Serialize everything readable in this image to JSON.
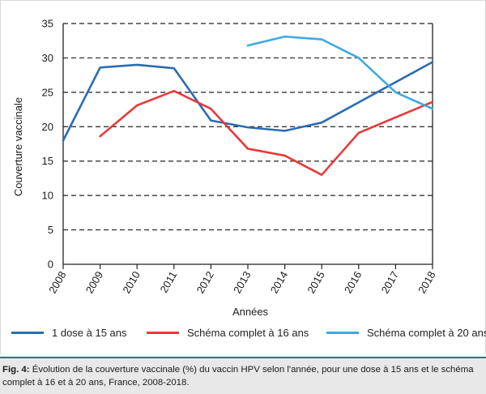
{
  "figure": {
    "caption_label": "Fig. 4:",
    "caption_text": "Évolution de la couverture vaccinale (%) du vaccin HPV selon l'année, pour une dose à 15 ans et le schéma complet à 16 et à 20 ans, France, 2008-2018."
  },
  "chart_data": {
    "type": "line",
    "title": "",
    "xlabel": "Années",
    "ylabel": "Couverture vaccinale",
    "x": [
      "2008",
      "2009",
      "2010",
      "2011",
      "2012",
      "2013",
      "2014",
      "2015",
      "2016",
      "2017",
      "2018"
    ],
    "ylim": [
      0,
      35
    ],
    "yticks": [
      0,
      5,
      10,
      15,
      20,
      25,
      30,
      35
    ],
    "grid": "horizontal dashed",
    "legend_position": "bottom",
    "series": [
      {
        "name": "1 dose à 15 ans",
        "color": "#2b6cb0",
        "values": [
          18.0,
          28.6,
          29.0,
          28.5,
          20.9,
          19.9,
          19.4,
          20.6,
          null,
          null,
          29.4
        ]
      },
      {
        "name": "Schéma complet à 16 ans",
        "color": "#e8393a",
        "values": [
          null,
          18.6,
          23.1,
          25.2,
          22.6,
          16.8,
          15.8,
          13.0,
          19.1,
          null,
          23.6
        ]
      },
      {
        "name": "Schéma complet à 20 ans",
        "color": "#3fa9df",
        "values": [
          null,
          null,
          null,
          null,
          null,
          31.8,
          33.1,
          32.7,
          30.0,
          25.0,
          22.6
        ]
      }
    ]
  }
}
